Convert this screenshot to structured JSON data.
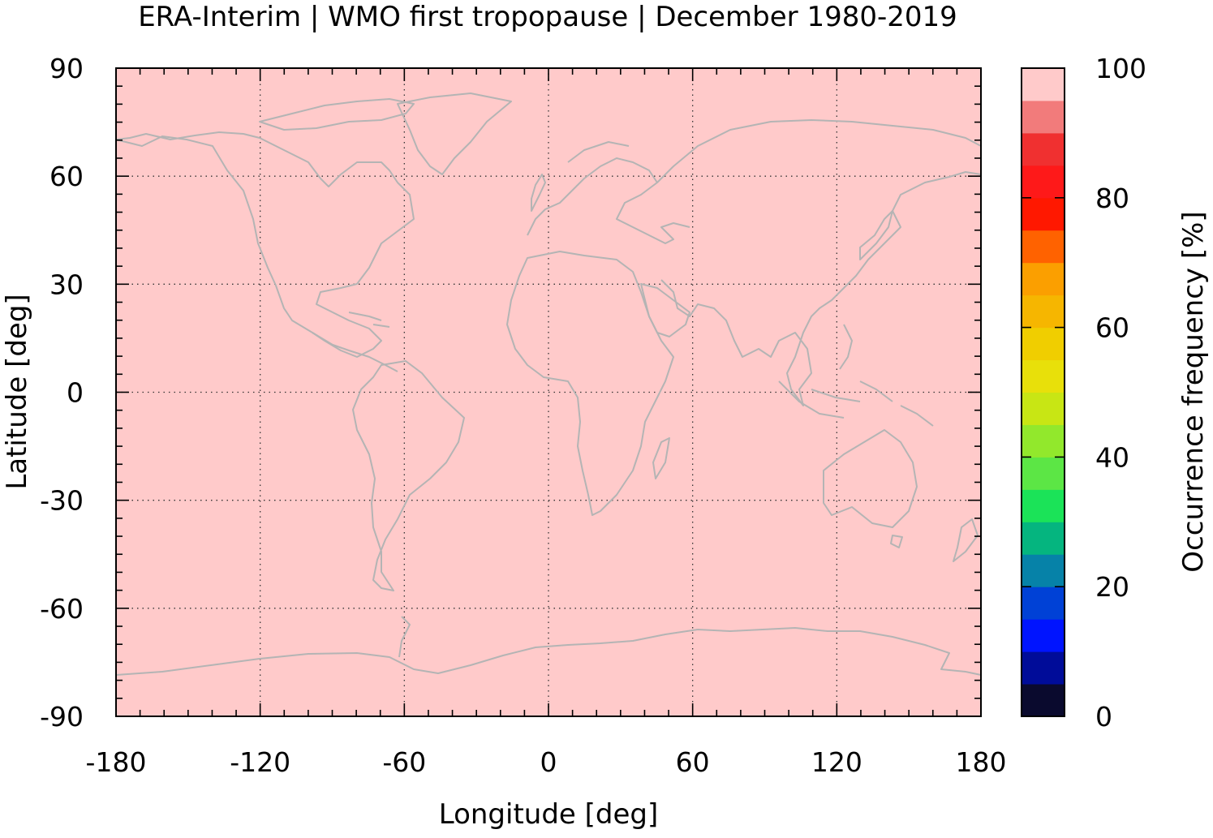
{
  "title": "ERA-Interim | WMO first tropopause | December 1980-2019",
  "map": {
    "background_color": "#ffcaca",
    "coastline_color": "#b4b4b4",
    "x_label": "Longitude [deg]",
    "y_label": "Latitude [deg]",
    "x_range": [
      -180,
      180
    ],
    "y_range": [
      -90,
      90
    ],
    "x_ticks": [
      "-180",
      "-120",
      "-60",
      "0",
      "60",
      "120",
      "180"
    ],
    "y_ticks": [
      "90",
      "60",
      "30",
      "0",
      "-30",
      "-60",
      "-90"
    ],
    "grid": true
  },
  "colorbar": {
    "label": "Occurrence frequency [%]",
    "range": [
      0,
      100
    ],
    "ticks": [
      "100",
      "80",
      "60",
      "40",
      "20",
      "0"
    ],
    "colors": [
      "#0a0a2e",
      "#000c99",
      "#0014ff",
      "#0041d6",
      "#0682a8",
      "#05b57f",
      "#1be358",
      "#5ce645",
      "#92e82c",
      "#c8e614",
      "#e8e00a",
      "#f0ce00",
      "#f6b600",
      "#fb9f00",
      "#ff6200",
      "#ff1800",
      "#fe1919",
      "#f03030",
      "#f27b7b",
      "#ffcaca"
    ]
  }
}
